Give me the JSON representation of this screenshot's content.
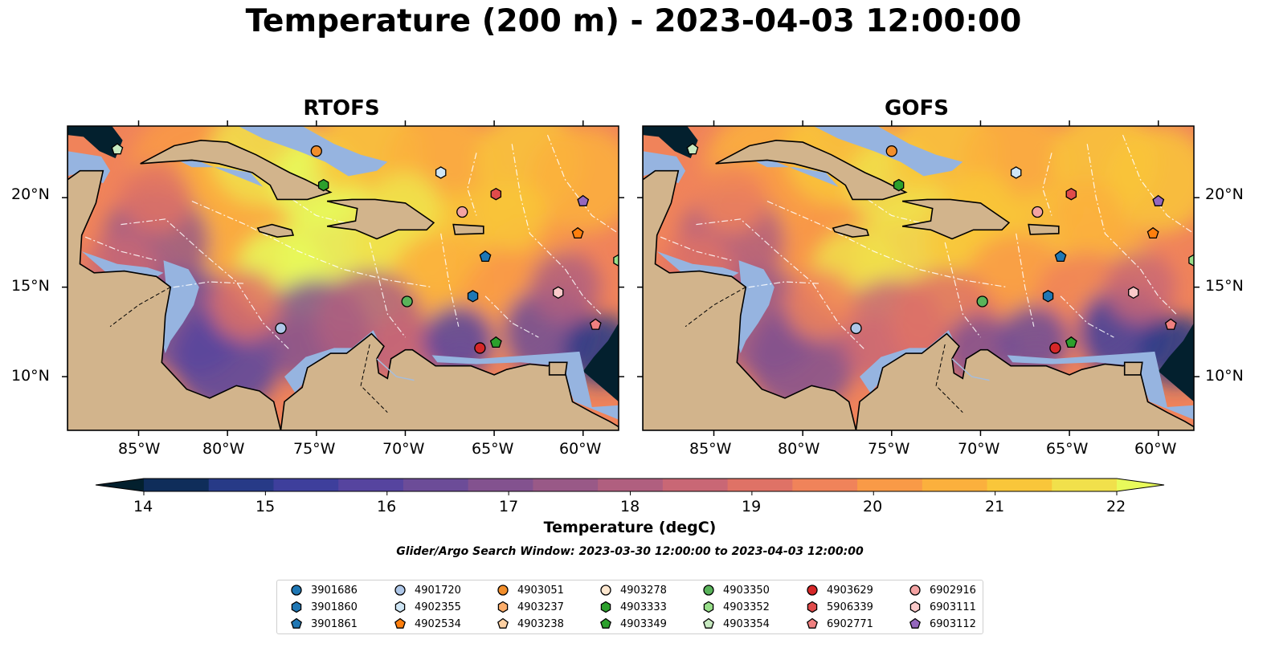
{
  "figure": {
    "title": "Temperature (200 m) - 2023-04-03 12:00:00",
    "search_window": "Glider/Argo Search Window: 2023-03-30 12:00:00 to 2023-04-03 12:00:00"
  },
  "panels": [
    {
      "title": "RTOFS"
    },
    {
      "title": "GOFS"
    }
  ],
  "axes": {
    "lon_ticks": [
      "85°W",
      "80°W",
      "75°W",
      "70°W",
      "65°W",
      "60°W"
    ],
    "lat_ticks": [
      "20°N",
      "15°N",
      "10°N"
    ],
    "lon_range": [
      -89,
      -58
    ],
    "lat_range": [
      7,
      24
    ]
  },
  "colorbar": {
    "label": "Temperature (degC)",
    "ticks": [
      "14",
      "15",
      "16",
      "17",
      "18",
      "19",
      "20",
      "21",
      "22"
    ],
    "range": [
      14,
      22
    ],
    "colormap": [
      "#03202e",
      "#0f2d5a",
      "#273a87",
      "#3e3f9c",
      "#56449f",
      "#6c4c98",
      "#83528f",
      "#995987",
      "#b05f7f",
      "#c96775",
      "#df7266",
      "#f0835a",
      "#f99a47",
      "#fbb03d",
      "#f9c63a",
      "#f1e04b",
      "#e8fa5b"
    ]
  },
  "map_colors": {
    "land": "#d2b48c",
    "shelf": "#96b4e0",
    "coast": "#000000"
  },
  "floats": [
    {
      "id": "3901686",
      "color": "#1f77b4",
      "marker": "circle"
    },
    {
      "id": "3901860",
      "color": "#1f77b4",
      "marker": "hexagon"
    },
    {
      "id": "3901861",
      "color": "#1f77b4",
      "marker": "pentagon"
    },
    {
      "id": "4901720",
      "color": "#aec7e8",
      "marker": "circle"
    },
    {
      "id": "4902355",
      "color": "#cfe6f5",
      "marker": "hexagon"
    },
    {
      "id": "4902534",
      "color": "#ff7f0e",
      "marker": "pentagon"
    },
    {
      "id": "4903051",
      "color": "#f28e2b",
      "marker": "circle"
    },
    {
      "id": "4903237",
      "color": "#fdae6b",
      "marker": "hexagon"
    },
    {
      "id": "4903238",
      "color": "#fdd0a2",
      "marker": "pentagon"
    },
    {
      "id": "4903278",
      "color": "#fde7cf",
      "marker": "circle"
    },
    {
      "id": "4903333",
      "color": "#2ca02c",
      "marker": "hexagon"
    },
    {
      "id": "4903349",
      "color": "#2ca02c",
      "marker": "pentagon"
    },
    {
      "id": "4903350",
      "color": "#59b35a",
      "marker": "circle"
    },
    {
      "id": "4903352",
      "color": "#98df8a",
      "marker": "hexagon"
    },
    {
      "id": "4903354",
      "color": "#c7e9c0",
      "marker": "pentagon"
    },
    {
      "id": "4903629",
      "color": "#d62728",
      "marker": "circle"
    },
    {
      "id": "5906339",
      "color": "#e04b4b",
      "marker": "hexagon"
    },
    {
      "id": "6902771",
      "color": "#f08080",
      "marker": "pentagon"
    },
    {
      "id": "6902916",
      "color": "#f4a3a3",
      "marker": "circle"
    },
    {
      "id": "6903111",
      "color": "#fbcaca",
      "marker": "hexagon"
    },
    {
      "id": "6903112",
      "color": "#9467bd",
      "marker": "pentagon"
    }
  ],
  "observations": [
    {
      "id": "4903354",
      "lon": -86.2,
      "lat": 22.7
    },
    {
      "id": "4903051",
      "lon": -75.0,
      "lat": 22.6
    },
    {
      "id": "4903333",
      "lon": -74.6,
      "lat": 20.7
    },
    {
      "id": "4902355",
      "lon": -68.0,
      "lat": 21.4
    },
    {
      "id": "6902916",
      "lon": -66.8,
      "lat": 19.2
    },
    {
      "id": "5906339",
      "lon": -64.9,
      "lat": 20.2
    },
    {
      "id": "6903112",
      "lon": -60.0,
      "lat": 19.8
    },
    {
      "id": "4902534",
      "lon": -60.3,
      "lat": 18.0
    },
    {
      "id": "3901861",
      "lon": -65.5,
      "lat": 16.7
    },
    {
      "id": "4903352",
      "lon": -58.0,
      "lat": 16.5
    },
    {
      "id": "6903111",
      "lon": -61.4,
      "lat": 14.7
    },
    {
      "id": "3901860",
      "lon": -66.2,
      "lat": 14.5
    },
    {
      "id": "4903350",
      "lon": -69.9,
      "lat": 14.2
    },
    {
      "id": "6902771",
      "lon": -59.3,
      "lat": 12.9
    },
    {
      "id": "4901720",
      "lon": -77.0,
      "lat": 12.7
    },
    {
      "id": "4903349",
      "lon": -64.9,
      "lat": 11.9
    },
    {
      "id": "4903629",
      "lon": -65.8,
      "lat": 11.6
    }
  ]
}
